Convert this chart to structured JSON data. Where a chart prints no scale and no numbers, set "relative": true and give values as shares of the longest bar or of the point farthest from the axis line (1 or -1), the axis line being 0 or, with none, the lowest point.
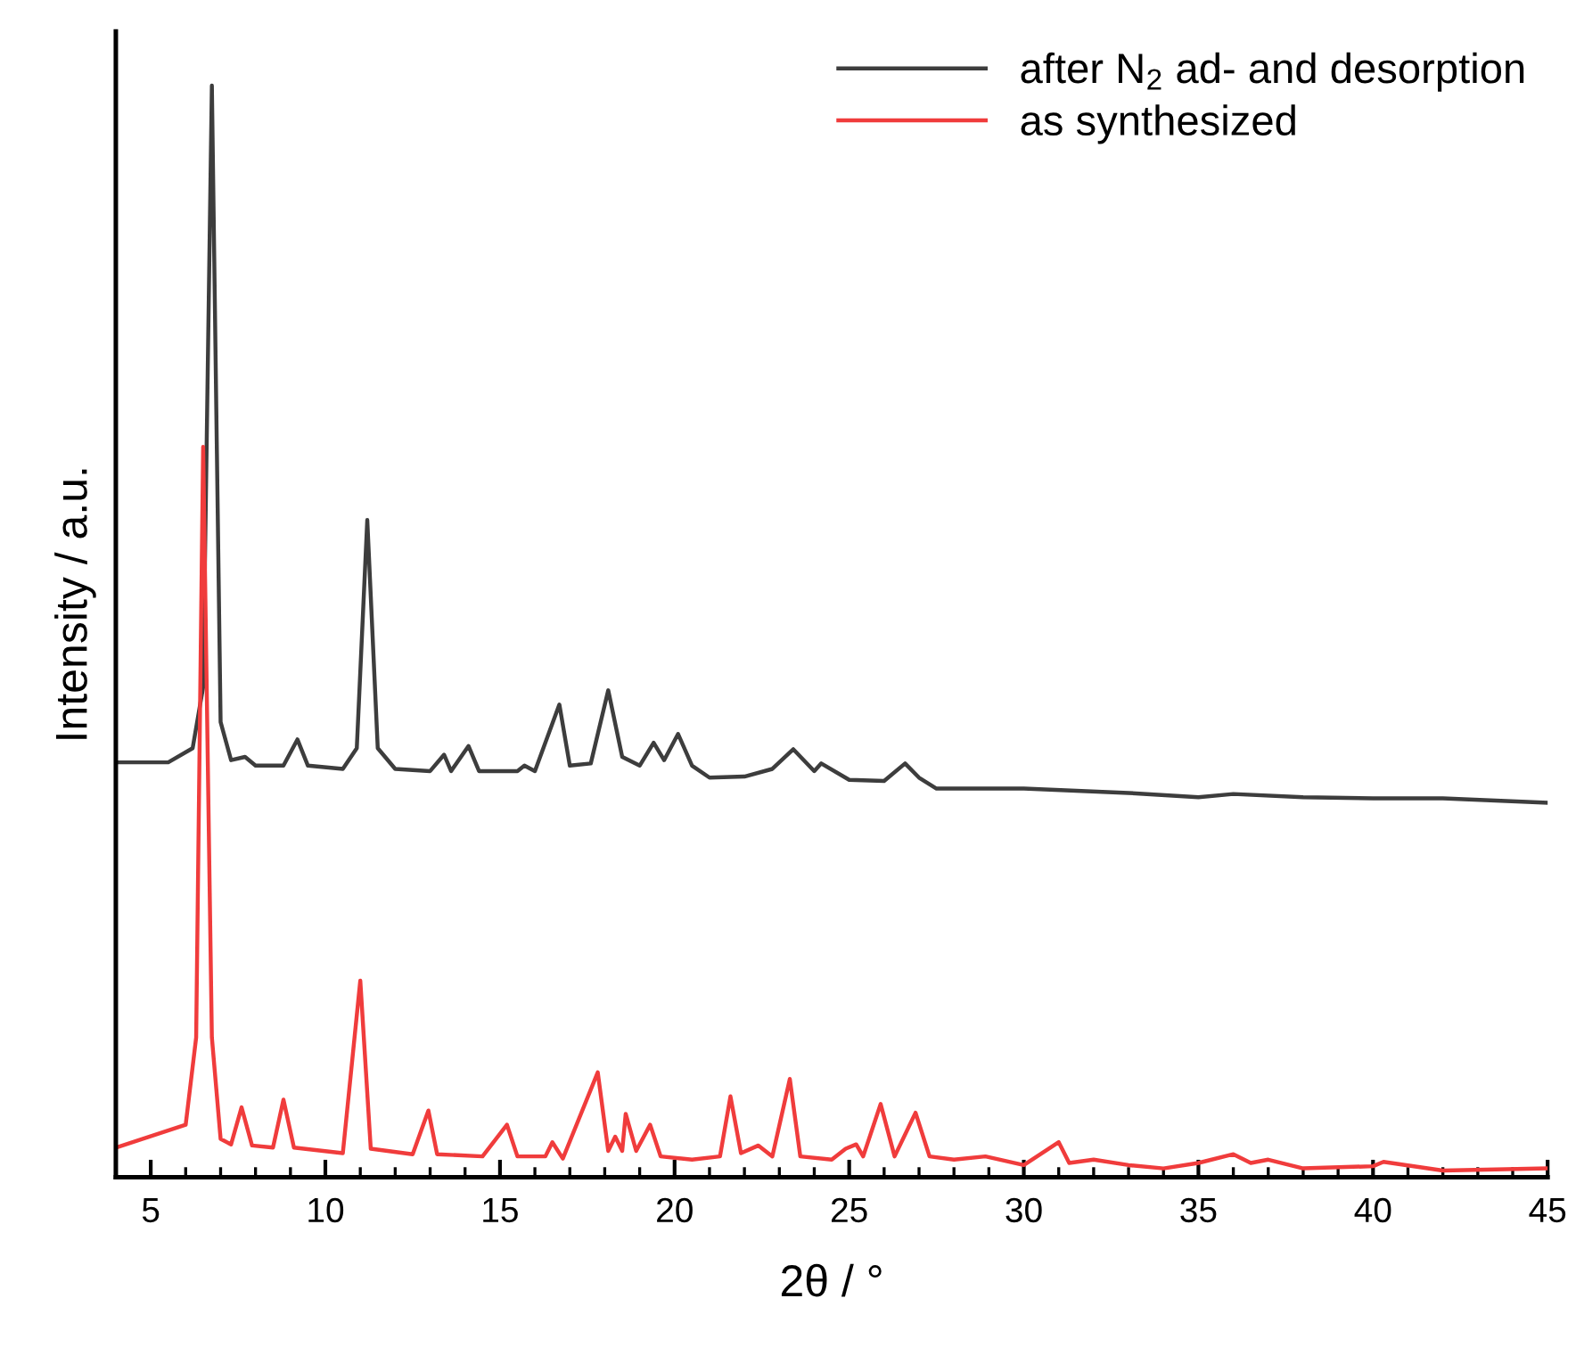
{
  "chart_data": {
    "type": "line",
    "relative": true,
    "xlabel": "2θ / °",
    "ylabel": "Intensity / a.u.",
    "xlim": [
      4,
      45
    ],
    "xticks": [
      5,
      10,
      15,
      20,
      25,
      30,
      35,
      40,
      45
    ],
    "tick_labels": "x",
    "legend": "top right",
    "grid": false,
    "marker": "none",
    "line_style": "solid",
    "series": [
      {
        "name": "after N$_{2}$ ad- and desorption",
        "color": "#3d3d3d",
        "x": [
          4,
          5.5,
          6.2,
          6.5,
          6.75,
          7.0,
          7.3,
          7.7,
          8.0,
          8.8,
          9.2,
          9.5,
          10.5,
          10.9,
          11.2,
          11.5,
          12.0,
          13.0,
          13.4,
          13.6,
          14.1,
          14.4,
          15.5,
          15.7,
          16.0,
          16.7,
          17.0,
          17.6,
          18.1,
          18.5,
          19.0,
          19.4,
          19.7,
          20.1,
          20.5,
          21.0,
          22.0,
          22.8,
          23.4,
          24.0,
          24.2,
          25.0,
          26.0,
          26.6,
          27.0,
          27.5,
          30,
          33,
          35,
          36,
          38,
          40,
          42,
          45
        ],
        "values": [
          0.38,
          0.38,
          0.393,
          0.449,
          1.0,
          0.417,
          0.382,
          0.385,
          0.377,
          0.377,
          0.401,
          0.377,
          0.374,
          0.393,
          0.602,
          0.393,
          0.374,
          0.372,
          0.387,
          0.372,
          0.395,
          0.372,
          0.372,
          0.377,
          0.372,
          0.433,
          0.377,
          0.379,
          0.446,
          0.385,
          0.377,
          0.398,
          0.382,
          0.406,
          0.377,
          0.366,
          0.367,
          0.374,
          0.392,
          0.372,
          0.379,
          0.364,
          0.363,
          0.379,
          0.366,
          0.356,
          0.356,
          0.352,
          0.348,
          0.351,
          0.348,
          0.347,
          0.347,
          0.343
        ]
      },
      {
        "name": "as synthesized",
        "color": "#f03c3c",
        "x": [
          4,
          6.0,
          6.3,
          6.5,
          6.75,
          7.0,
          7.3,
          7.6,
          7.9,
          8.5,
          8.8,
          9.1,
          10.5,
          11.0,
          11.3,
          12.5,
          12.95,
          13.2,
          14.5,
          15.2,
          15.5,
          16.3,
          16.5,
          16.8,
          17.8,
          18.1,
          18.3,
          18.5,
          18.6,
          18.9,
          19.3,
          19.6,
          20.5,
          21.3,
          21.6,
          21.9,
          22.4,
          22.8,
          23.3,
          23.6,
          24.5,
          24.9,
          25.2,
          25.4,
          25.9,
          26.3,
          26.9,
          27.3,
          28.0,
          28.9,
          30.0,
          31.0,
          31.3,
          32,
          33,
          34,
          35,
          36.0,
          36.5,
          37,
          38,
          40,
          40.3,
          42,
          45
        ],
        "values": [
          0.027,
          0.048,
          0.128,
          0.669,
          0.128,
          0.035,
          0.03,
          0.064,
          0.029,
          0.027,
          0.071,
          0.027,
          0.022,
          0.18,
          0.026,
          0.021,
          0.061,
          0.021,
          0.019,
          0.048,
          0.019,
          0.019,
          0.032,
          0.017,
          0.096,
          0.024,
          0.037,
          0.024,
          0.058,
          0.024,
          0.048,
          0.019,
          0.016,
          0.019,
          0.074,
          0.022,
          0.029,
          0.019,
          0.09,
          0.019,
          0.016,
          0.026,
          0.03,
          0.019,
          0.067,
          0.019,
          0.059,
          0.019,
          0.016,
          0.019,
          0.011,
          0.032,
          0.013,
          0.016,
          0.011,
          0.008,
          0.013,
          0.021,
          0.013,
          0.016,
          0.008,
          0.01,
          0.014,
          0.006,
          0.008
        ]
      }
    ]
  }
}
